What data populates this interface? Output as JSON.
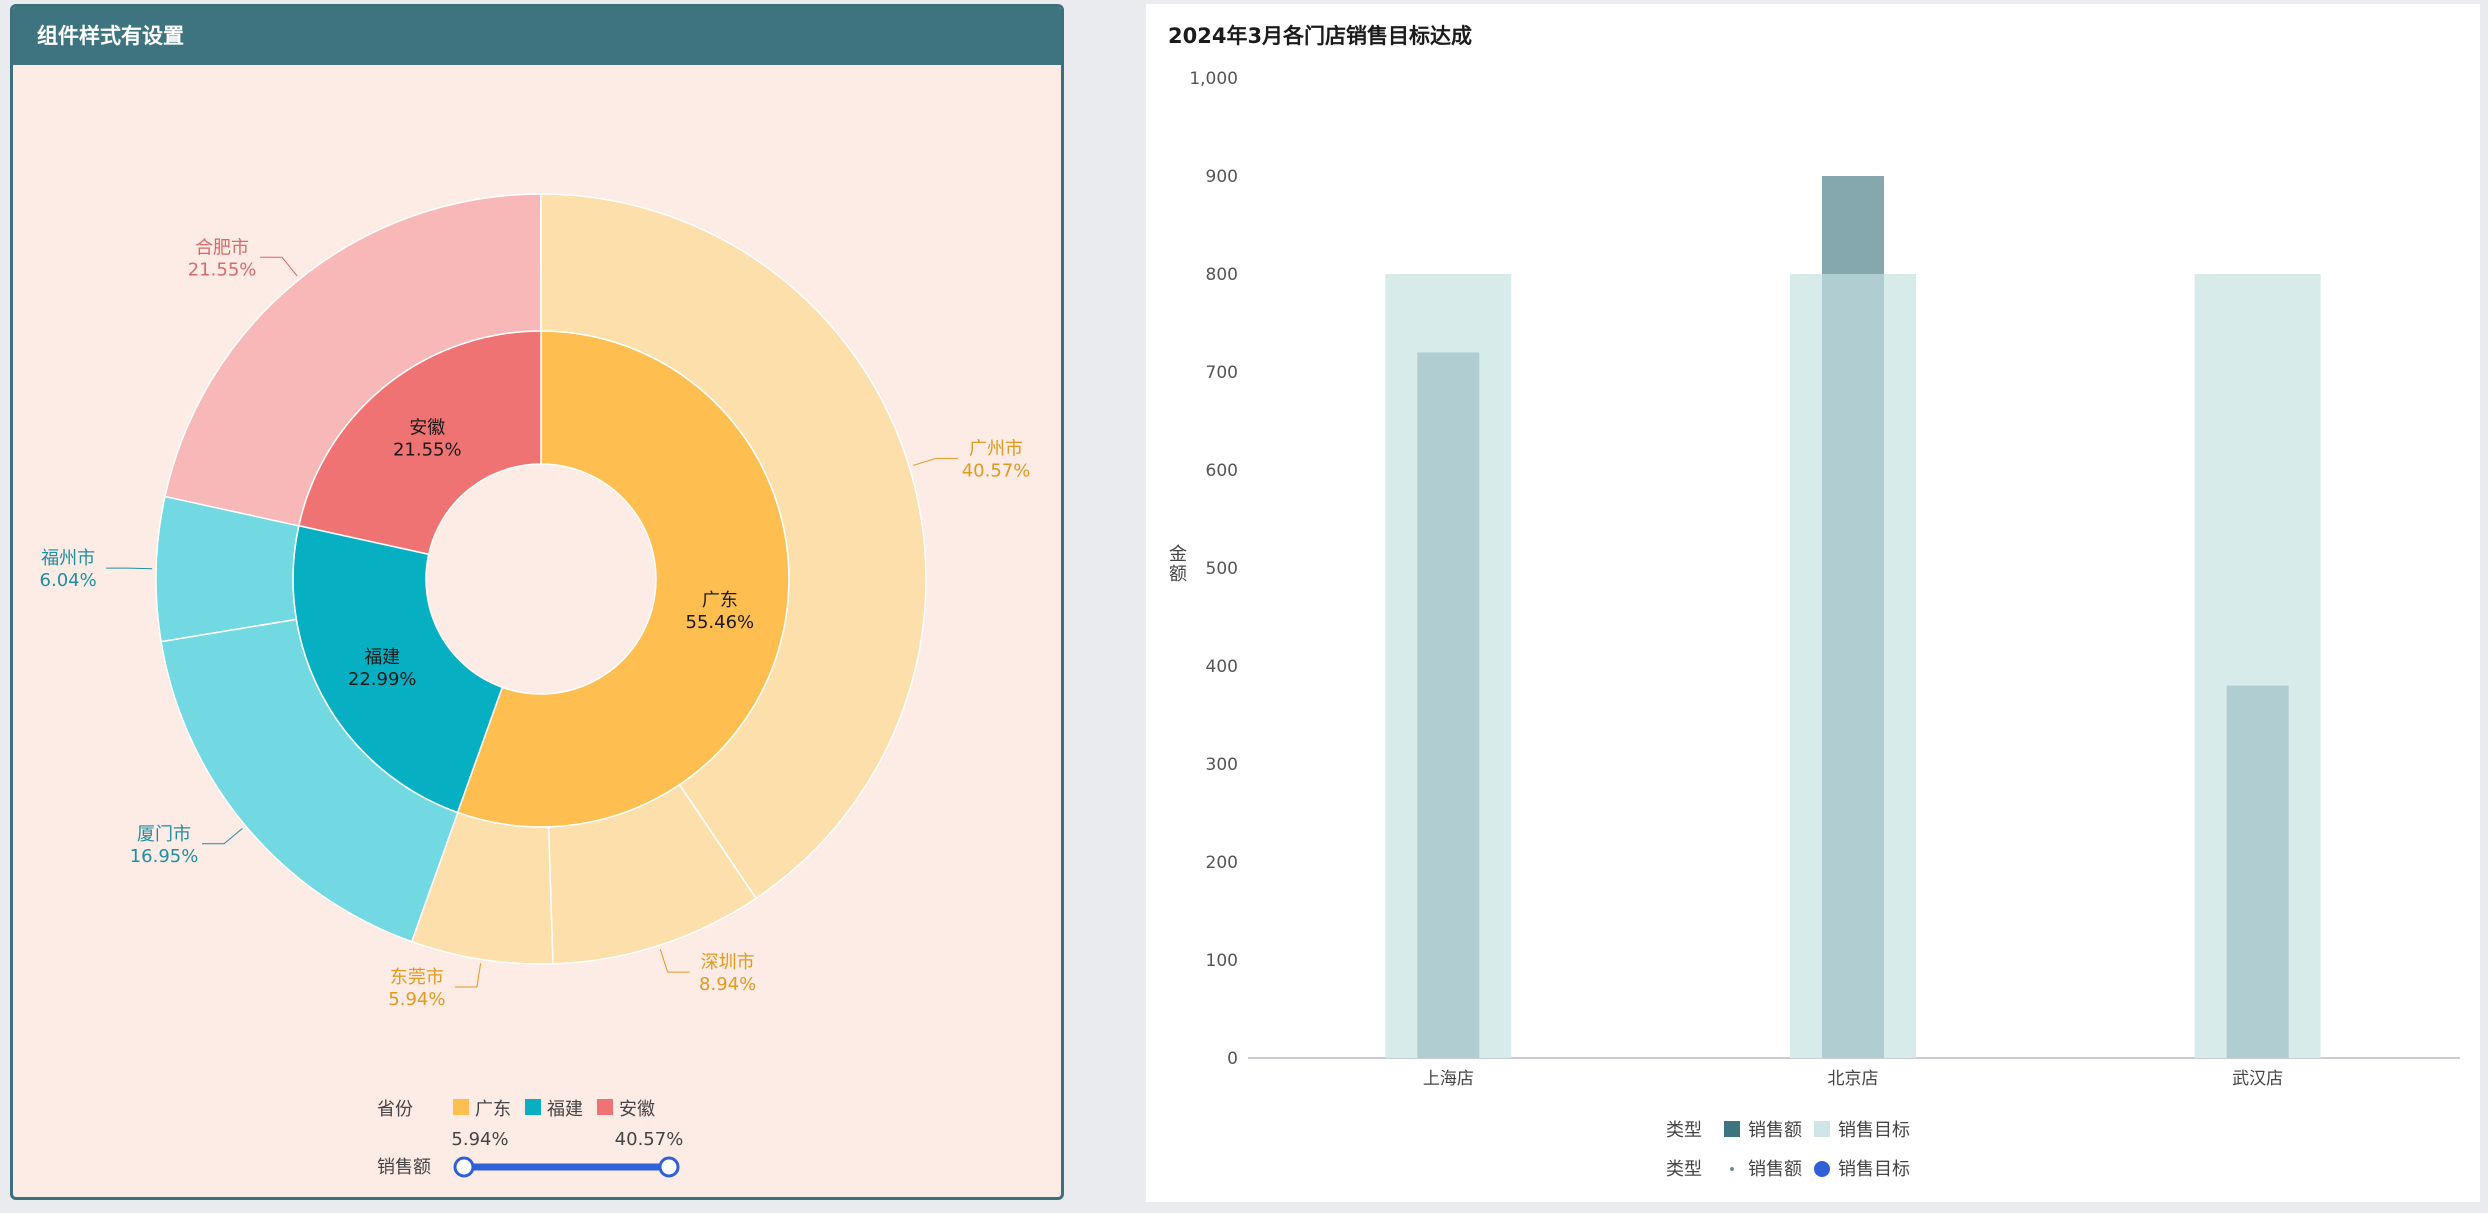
{
  "left_panel": {
    "title": "组件样式有设置",
    "legend_title": "省份",
    "legend_items": [
      {
        "label": "广东",
        "color": "#ffbe50"
      },
      {
        "label": "福建",
        "color": "#06b0c2"
      },
      {
        "label": "安徽",
        "color": "#f07373"
      }
    ],
    "slider": {
      "label": "销售额",
      "min_label": "5.94%",
      "max_label": "40.57%",
      "min_value": 5.94,
      "max_value": 40.57,
      "color": "#3060d8"
    }
  },
  "right_panel": {
    "title": "2024年3月各门店销售目标达成",
    "ylabel": "金额",
    "legend1": {
      "title": "类型",
      "items": [
        {
          "label": "销售额",
          "color": "#3d7480"
        },
        {
          "label": "销售目标",
          "color": "#cfe5e6"
        }
      ]
    },
    "legend2": {
      "title": "类型",
      "items": [
        {
          "label": "销售额",
          "color": "#6a8c94",
          "shape": "small-dot"
        },
        {
          "label": "销售目标",
          "color": "#3060d8",
          "shape": "circle"
        }
      ]
    }
  },
  "chart_data": [
    {
      "type": "pie",
      "subtype": "nested-donut",
      "inner_ring": [
        {
          "label": "广东",
          "pct": "55.46%",
          "value": 55.46,
          "color": "#ffbe50"
        },
        {
          "label": "福建",
          "pct": "22.99%",
          "value": 22.99,
          "color": "#06b0c2"
        },
        {
          "label": "安徽",
          "pct": "21.55%",
          "value": 21.55,
          "color": "#f07373"
        }
      ],
      "outer_ring": [
        {
          "label": "广州市",
          "pct": "40.57%",
          "value": 40.57,
          "parent": "广东",
          "color": "#fddfab",
          "label_color": "#e09a20"
        },
        {
          "label": "深圳市",
          "pct": "8.94%",
          "value": 8.94,
          "parent": "广东",
          "color": "#fddfab",
          "label_color": "#e09a20"
        },
        {
          "label": "东莞市",
          "pct": "5.94%",
          "value": 5.94,
          "parent": "广东",
          "color": "#fddfab",
          "label_color": "#e09a20"
        },
        {
          "label": "厦门市",
          "pct": "16.95%",
          "value": 16.95,
          "parent": "福建",
          "color": "#72d8e2",
          "label_color": "#1f8fa0"
        },
        {
          "label": "福州市",
          "pct": "6.04%",
          "value": 6.04,
          "parent": "福建",
          "color": "#72d8e2",
          "label_color": "#1f8fa0"
        },
        {
          "label": "合肥市",
          "pct": "21.55%",
          "value": 21.55,
          "parent": "安徽",
          "color": "#f8b8b8",
          "label_color": "#d86a6a"
        }
      ]
    },
    {
      "type": "bar",
      "subtype": "bullet",
      "categories": [
        "上海店",
        "北京店",
        "武汉店"
      ],
      "series": [
        {
          "name": "销售额",
          "values": [
            720,
            900,
            380
          ],
          "color": "#b0cdd1",
          "over_color": "#84a8ae"
        },
        {
          "name": "销售目标",
          "values": [
            800,
            800,
            800
          ],
          "color": "#d8ebeb"
        }
      ],
      "ylim": [
        0,
        1000
      ],
      "yticks": [
        "0",
        "100",
        "200",
        "300",
        "400",
        "500",
        "600",
        "700",
        "800",
        "900",
        "1,000"
      ]
    }
  ]
}
